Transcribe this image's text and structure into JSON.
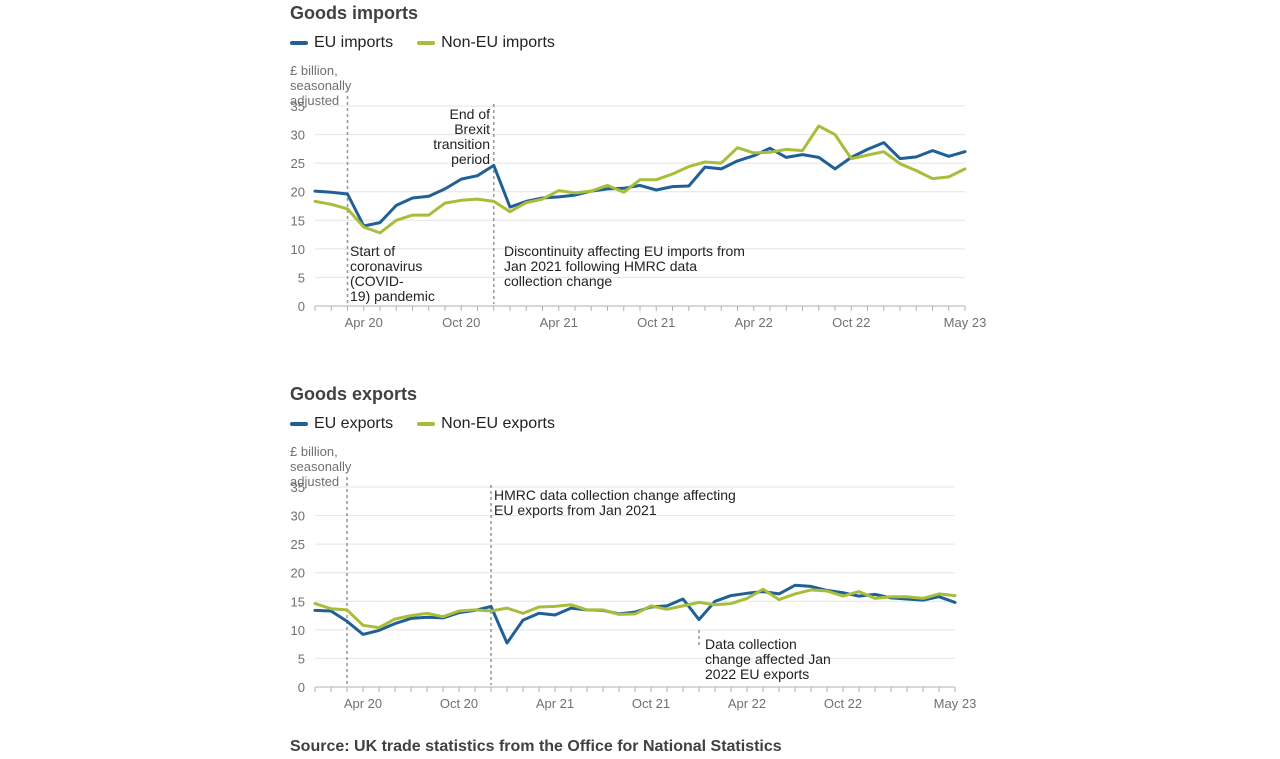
{
  "chart_data": [
    {
      "type": "line",
      "title": "Goods imports",
      "ylabel": "£ billion, seasonally adjusted",
      "ylim": [
        0,
        35
      ],
      "yticks": [
        0,
        5,
        10,
        15,
        20,
        25,
        30,
        35
      ],
      "xtick_labels": [
        {
          "i": 3,
          "label": "Apr 20"
        },
        {
          "i": 9,
          "label": "Oct 20"
        },
        {
          "i": 15,
          "label": "Apr 21"
        },
        {
          "i": 21,
          "label": "Oct 21"
        },
        {
          "i": 27,
          "label": "Apr 22"
        },
        {
          "i": 33,
          "label": "Oct 22"
        },
        {
          "i": 40,
          "label": "May 23"
        }
      ],
      "x": [
        "Jan 20",
        "Feb 20",
        "Mar 20",
        "Apr 20",
        "May 20",
        "Jun 20",
        "Jul 20",
        "Aug 20",
        "Sep 20",
        "Oct 20",
        "Nov 20",
        "Dec 20",
        "Jan 21",
        "Feb 21",
        "Mar 21",
        "Apr 21",
        "May 21",
        "Jun 21",
        "Jul 21",
        "Aug 21",
        "Sep 21",
        "Oct 21",
        "Nov 21",
        "Dec 21",
        "Jan 22",
        "Feb 22",
        "Mar 22",
        "Apr 22",
        "May 22",
        "Jun 22",
        "Jul 22",
        "Aug 22",
        "Sep 22",
        "Oct 22",
        "Nov 22",
        "Dec 22",
        "Jan 23",
        "Feb 23",
        "Mar 23",
        "Apr 23",
        "May 23"
      ],
      "series": [
        {
          "name": "EU imports",
          "color": "#206095",
          "values": [
            20.1,
            19.9,
            19.6,
            14.0,
            14.6,
            17.6,
            18.9,
            19.2,
            20.5,
            22.2,
            22.8,
            24.6,
            17.3,
            18.3,
            18.9,
            19.1,
            19.4,
            20.1,
            20.5,
            20.6,
            21.1,
            20.3,
            20.9,
            21.0,
            24.3,
            24.0,
            25.4,
            26.3,
            27.6,
            26.0,
            26.5,
            26.0,
            24.0,
            26.0,
            27.4,
            28.6,
            25.8,
            26.1,
            27.2,
            26.2,
            27.0
          ]
        },
        {
          "name": "Non-EU imports",
          "color": "#a8bd3a",
          "values": [
            18.3,
            17.8,
            17.0,
            13.8,
            12.8,
            15.0,
            15.9,
            15.9,
            18.0,
            18.5,
            18.7,
            18.3,
            16.5,
            18.1,
            18.7,
            20.2,
            19.8,
            20.1,
            21.1,
            19.9,
            22.1,
            22.1,
            23.1,
            24.4,
            25.2,
            25.0,
            27.7,
            26.8,
            26.9,
            27.4,
            27.2,
            31.5,
            30.0,
            25.8,
            26.4,
            27.0,
            24.9,
            23.7,
            22.3,
            22.6,
            24.0
          ]
        }
      ],
      "annotations": [
        {
          "i": 2,
          "text": [
            "Start of",
            "coronavirus",
            "(COVID-",
            "19) pandemic"
          ]
        },
        {
          "i": 11,
          "text": [
            "End of",
            "Brexit",
            "transition",
            "period"
          ]
        },
        {
          "i": 11,
          "text": [
            "Discontinuity affecting EU imports from",
            "Jan 2021 following HMRC data",
            "collection change"
          ]
        }
      ]
    },
    {
      "type": "line",
      "title": "Goods exports",
      "ylabel": "£ billion, seasonally adjusted",
      "ylim": [
        0,
        35
      ],
      "yticks": [
        0,
        5,
        10,
        15,
        20,
        25,
        30,
        35
      ],
      "xtick_labels": [
        {
          "i": 3,
          "label": "Apr 20"
        },
        {
          "i": 9,
          "label": "Oct 20"
        },
        {
          "i": 15,
          "label": "Apr 21"
        },
        {
          "i": 21,
          "label": "Oct 21"
        },
        {
          "i": 27,
          "label": "Apr 22"
        },
        {
          "i": 33,
          "label": "Oct 22"
        },
        {
          "i": 40,
          "label": "May 23"
        }
      ],
      "x": [
        "Jan 20",
        "Feb 20",
        "Mar 20",
        "Apr 20",
        "May 20",
        "Jun 20",
        "Jul 20",
        "Aug 20",
        "Sep 20",
        "Oct 20",
        "Nov 20",
        "Dec 20",
        "Jan 21",
        "Feb 21",
        "Mar 21",
        "Apr 21",
        "May 21",
        "Jun 21",
        "Jul 21",
        "Aug 21",
        "Sep 21",
        "Oct 21",
        "Nov 21",
        "Dec 21",
        "Jan 22",
        "Feb 22",
        "Mar 22",
        "Apr 22",
        "May 22",
        "Jun 22",
        "Jul 22",
        "Aug 22",
        "Sep 22",
        "Oct 22",
        "Nov 22",
        "Dec 22",
        "Jan 23",
        "Feb 23",
        "Mar 23",
        "Apr 23",
        "May 23"
      ],
      "series": [
        {
          "name": "EU exports",
          "color": "#206095",
          "values": [
            13.4,
            13.3,
            11.5,
            9.2,
            9.9,
            11.1,
            12.0,
            12.2,
            12.1,
            13.0,
            13.4,
            14.1,
            7.7,
            11.7,
            12.9,
            12.6,
            13.8,
            13.5,
            13.4,
            12.8,
            13.1,
            14.0,
            14.2,
            15.4,
            11.8,
            15.0,
            16.0,
            16.4,
            16.7,
            16.3,
            17.8,
            17.6,
            16.9,
            16.5,
            15.9,
            16.2,
            15.6,
            15.4,
            15.2,
            15.8,
            14.8
          ]
        },
        {
          "name": "Non-EU exports",
          "color": "#a8bd3a",
          "values": [
            14.6,
            13.7,
            13.5,
            10.8,
            10.4,
            11.9,
            12.5,
            12.9,
            12.3,
            13.3,
            13.5,
            13.3,
            13.8,
            12.9,
            14.0,
            14.1,
            14.4,
            13.5,
            13.5,
            12.7,
            12.8,
            14.2,
            13.6,
            14.2,
            14.8,
            14.4,
            14.6,
            15.5,
            17.1,
            15.3,
            16.3,
            17.0,
            16.8,
            15.9,
            16.7,
            15.5,
            15.8,
            15.8,
            15.5,
            16.3,
            16.0
          ]
        }
      ],
      "annotations": [
        {
          "i": 2,
          "text": []
        },
        {
          "i": 11,
          "text": [
            "HMRC data collection change affecting",
            "EU exports from Jan 2021"
          ]
        },
        {
          "i": 24,
          "text": [
            "Data collection",
            "change affected Jan",
            "2022 EU exports"
          ]
        }
      ]
    }
  ],
  "source": "Source: UK trade statistics from the Office for National Statistics"
}
